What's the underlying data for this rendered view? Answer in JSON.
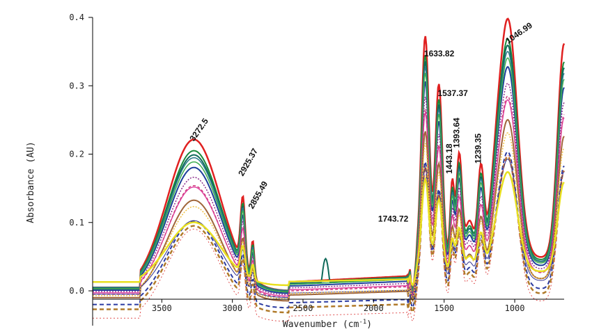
{
  "chart_data": {
    "type": "line",
    "title": "",
    "xlabel": "Wavenumber (cm",
    "xlabel_sup": "-1",
    "xlabel_close": ")",
    "ylabel": "Absorbance (AU)",
    "xlim": [
      3990,
      650
    ],
    "ylim": [
      -0.045,
      0.4
    ],
    "xticks": [
      3500,
      3000,
      2500,
      2000,
      1500,
      1000
    ],
    "yticks": [
      0.0,
      0.1,
      0.2,
      0.3,
      0.4
    ],
    "ytick_labels": [
      "0.0",
      "0.1",
      "0.2",
      "0.3",
      "0.4"
    ],
    "grid": false,
    "legend": "none",
    "peak_annotations": [
      {
        "label": "3272.5",
        "x": 3272.5,
        "y": 0.212
      },
      {
        "label": "2925.37",
        "x": 2925.37,
        "y": 0.161
      },
      {
        "label": "2855.49",
        "x": 2855.49,
        "y": 0.113
      },
      {
        "label": "1743.72",
        "x": 1743.72,
        "y": 0.085
      },
      {
        "label": "1633.82",
        "x": 1633.82,
        "y": 0.333
      },
      {
        "label": "1537.37",
        "x": 1537.37,
        "y": 0.275
      },
      {
        "label": "1443.18",
        "x": 1443.18,
        "y": 0.165
      },
      {
        "label": "1393.64",
        "x": 1393.64,
        "y": 0.203
      },
      {
        "label": "1239.35",
        "x": 1239.35,
        "y": 0.18
      },
      {
        "label": "1046.99",
        "x": 1046.99,
        "y": 0.355
      }
    ],
    "series": [
      {
        "color": "#e02020",
        "dash": "",
        "width": 2.5,
        "scale": 1.08,
        "offset": 0.0
      },
      {
        "color": "#1a8a3a",
        "dash": "",
        "width": 2.0,
        "scale": 1.0,
        "offset": 0.0
      },
      {
        "color": "#0f6a5a",
        "dash": "",
        "width": 2.0,
        "scale": 0.98,
        "offset": -0.002
      },
      {
        "color": "#2a7a8a",
        "dash": "",
        "width": 1.5,
        "scale": 0.95,
        "offset": 0.0
      },
      {
        "color": "#1d3f9a",
        "dash": "",
        "width": 2.0,
        "scale": 0.9,
        "offset": -0.004
      },
      {
        "color": "#3fae4f",
        "dash": "",
        "width": 1.5,
        "scale": 0.93,
        "offset": -0.002
      },
      {
        "color": "#8a2a8a",
        "dash": "2,2",
        "width": 1.5,
        "scale": 0.84,
        "offset": -0.006
      },
      {
        "color": "#e040a0",
        "dash": "",
        "width": 1.5,
        "scale": 0.78,
        "offset": -0.008
      },
      {
        "color": "#d04080",
        "dash": "4,3",
        "width": 1.5,
        "scale": 0.8,
        "offset": -0.01
      },
      {
        "color": "#a0663a",
        "dash": "",
        "width": 2.0,
        "scale": 0.72,
        "offset": -0.015
      },
      {
        "color": "#2a3aa0",
        "dash": "6,4",
        "width": 2.0,
        "scale": 0.62,
        "offset": -0.025
      },
      {
        "color": "#b07a2a",
        "dash": "6,4",
        "width": 2.5,
        "scale": 0.62,
        "offset": -0.032
      },
      {
        "color": "#303090",
        "dash": "",
        "width": 1.0,
        "scale": 0.55,
        "offset": -0.01
      },
      {
        "color": "#f0c040",
        "dash": "2,2",
        "width": 1.5,
        "scale": 0.66,
        "offset": -0.012
      },
      {
        "color": "#e05050",
        "dash": "2,3",
        "width": 1.0,
        "scale": 0.66,
        "offset": -0.045
      },
      {
        "color": "#e8e020",
        "dash": "",
        "width": 2.5,
        "scale": 0.45,
        "offset": 0.008
      }
    ]
  }
}
